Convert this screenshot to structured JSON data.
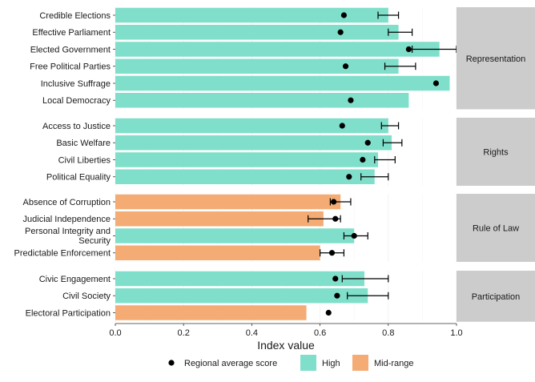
{
  "chart_data": {
    "type": "bar",
    "orientation": "horizontal",
    "xlabel": "Index value",
    "xlim": [
      0,
      1.0
    ],
    "xticks": [
      0.0,
      0.2,
      0.4,
      0.6,
      0.8,
      1.0
    ],
    "xtick_labels": [
      "0.0",
      "0.2",
      "0.4",
      "0.6",
      "0.8",
      "1.0"
    ],
    "grid": true,
    "legend": {
      "position": "bottom",
      "items": [
        {
          "label": "Regional average score",
          "kind": "point"
        },
        {
          "label": "High",
          "kind": "fill",
          "color": "#7fdfca"
        },
        {
          "label": "Mid-range",
          "kind": "fill",
          "color": "#f5ab74"
        }
      ]
    },
    "colors": {
      "High": "#7fdfca",
      "Mid-range": "#f5ab74",
      "panel_strip": "#cccccc"
    },
    "panels": [
      {
        "strip_label": "Representation",
        "rows": [
          {
            "label": "Credible Elections",
            "value": 0.8,
            "category": "High",
            "avg": 0.67,
            "err_low": 0.77,
            "err_high": 0.83
          },
          {
            "label": "Effective Parliament",
            "value": 0.83,
            "category": "High",
            "avg": 0.66,
            "err_low": 0.8,
            "err_high": 0.87
          },
          {
            "label": "Elected Government",
            "value": 0.95,
            "category": "High",
            "avg": 0.86,
            "err_low": 0.87,
            "err_high": 1.0
          },
          {
            "label": "Free Political Parties",
            "value": 0.83,
            "category": "High",
            "avg": 0.675,
            "err_low": 0.79,
            "err_high": 0.88
          },
          {
            "label": "Inclusive Suffrage",
            "value": 0.98,
            "category": "High",
            "avg": 0.94,
            "err_low": null,
            "err_high": null
          },
          {
            "label": "Local Democracy",
            "value": 0.86,
            "category": "High",
            "avg": 0.69,
            "err_low": null,
            "err_high": null
          }
        ]
      },
      {
        "strip_label": "Rights",
        "rows": [
          {
            "label": "Access to Justice",
            "value": 0.8,
            "category": "High",
            "avg": 0.665,
            "err_low": 0.78,
            "err_high": 0.83
          },
          {
            "label": "Basic Welfare",
            "value": 0.81,
            "category": "High",
            "avg": 0.74,
            "err_low": 0.785,
            "err_high": 0.84
          },
          {
            "label": "Civil Liberties",
            "value": 0.77,
            "category": "High",
            "avg": 0.725,
            "err_low": 0.76,
            "err_high": 0.82
          },
          {
            "label": "Political Equality",
            "value": 0.76,
            "category": "High",
            "avg": 0.685,
            "err_low": 0.72,
            "err_high": 0.8
          }
        ]
      },
      {
        "strip_label": "Rule of Law",
        "rows": [
          {
            "label": "Absence of Corruption",
            "value": 0.66,
            "category": "Mid-range",
            "avg": 0.64,
            "err_low": 0.63,
            "err_high": 0.69
          },
          {
            "label": "Judicial Independence",
            "value": 0.61,
            "category": "Mid-range",
            "avg": 0.645,
            "err_low": 0.565,
            "err_high": 0.66
          },
          {
            "label": "Personal Integrity and Security",
            "value": 0.7,
            "category": "High",
            "avg": 0.7,
            "err_low": 0.67,
            "err_high": 0.74
          },
          {
            "label": "Predictable Enforcement",
            "value": 0.6,
            "category": "Mid-range",
            "avg": 0.635,
            "err_low": 0.6,
            "err_high": 0.67
          }
        ]
      },
      {
        "strip_label": "Participation",
        "rows": [
          {
            "label": "Civic Engagement",
            "value": 0.73,
            "category": "High",
            "avg": 0.645,
            "err_low": 0.665,
            "err_high": 0.8
          },
          {
            "label": "Civil Society",
            "value": 0.74,
            "category": "High",
            "avg": 0.65,
            "err_low": 0.68,
            "err_high": 0.8
          },
          {
            "label": "Electoral Participation",
            "value": 0.56,
            "category": "Mid-range",
            "avg": 0.625,
            "err_low": null,
            "err_high": null
          }
        ]
      }
    ]
  }
}
